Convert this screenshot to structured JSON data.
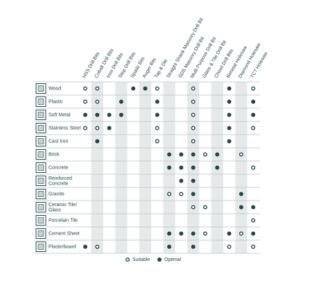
{
  "columns": [
    "HSS Drill Bits",
    "Cobalt Drill Bits",
    "Inox Drill Bits",
    "Step Drill Bits",
    "Spade Bits",
    "Auger Bits",
    "Tap & Die",
    "Straight Shank Masonry Drill Bit",
    "SDS Masonry Drill Bit",
    "Multi Purpose Drill Bit",
    "Glass & Tile Drill Bit",
    "Chisel Drill Bits",
    "Bimetal Holesaw",
    "Diamond Holesaw",
    "TCT Holesaw"
  ],
  "legend": [
    "Suitable",
    "Optimal"
  ],
  "rows": [
    {
      "label": "Wood",
      "cells": [
        0,
        0,
        null,
        null,
        1,
        1,
        0,
        null,
        null,
        0,
        null,
        null,
        1,
        null,
        0
      ]
    },
    {
      "label": "Plastic",
      "cells": [
        0,
        0,
        null,
        1,
        null,
        null,
        1,
        null,
        null,
        0,
        null,
        null,
        1,
        null,
        1
      ]
    },
    {
      "label": "Soft Metal",
      "cells": [
        1,
        1,
        1,
        1,
        null,
        null,
        1,
        null,
        null,
        0,
        null,
        null,
        1,
        null,
        1
      ]
    },
    {
      "label": "Stainless Steel",
      "cells": [
        0,
        0,
        1,
        null,
        null,
        null,
        0,
        null,
        null,
        0,
        null,
        null,
        1,
        null,
        0
      ]
    },
    {
      "label": "Cast Iron",
      "cells": [
        null,
        1,
        null,
        null,
        null,
        null,
        0,
        null,
        null,
        0,
        null,
        null,
        1,
        null,
        null
      ]
    },
    {
      "label": "Brick",
      "cells": [
        null,
        null,
        null,
        null,
        null,
        null,
        null,
        1,
        1,
        1,
        0,
        1,
        null,
        0,
        null
      ]
    },
    {
      "label": "Concrete",
      "cells": [
        null,
        null,
        null,
        null,
        null,
        null,
        null,
        1,
        1,
        1,
        null,
        1,
        null,
        null,
        0
      ]
    },
    {
      "label": [
        "Reinforced",
        "Concrete"
      ],
      "cells": [
        null,
        null,
        null,
        null,
        null,
        null,
        null,
        null,
        1,
        1,
        null,
        null,
        null,
        null,
        null
      ]
    },
    {
      "label": "Granite",
      "cells": [
        null,
        null,
        null,
        null,
        null,
        null,
        null,
        0,
        0,
        1,
        null,
        null,
        null,
        1,
        null
      ]
    },
    {
      "label": [
        "Ceramic Tile/",
        "Glass"
      ],
      "cells": [
        null,
        null,
        null,
        null,
        null,
        null,
        null,
        null,
        null,
        0,
        0,
        null,
        null,
        1,
        1
      ]
    },
    {
      "label": "Porcelain Tile",
      "cells": [
        null,
        null,
        null,
        null,
        null,
        null,
        null,
        null,
        null,
        null,
        null,
        null,
        null,
        null,
        0
      ]
    },
    {
      "label": "Cement Sheet",
      "cells": [
        null,
        null,
        null,
        null,
        null,
        null,
        null,
        1,
        1,
        1,
        0,
        null,
        1,
        0,
        1
      ]
    },
    {
      "label": "Plasterboard",
      "cells": [
        1,
        0,
        null,
        null,
        null,
        null,
        null,
        1,
        null,
        1,
        null,
        null,
        0,
        null,
        0
      ]
    }
  ]
}
